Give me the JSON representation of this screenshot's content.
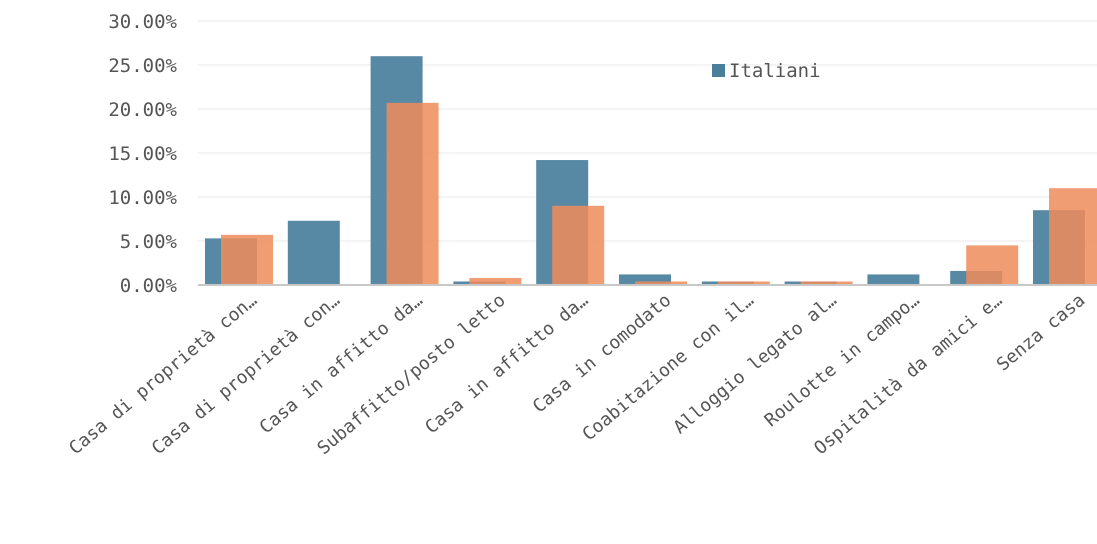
{
  "chart_data": {
    "type": "bar",
    "categories": [
      "Casa di proprietà con…",
      "Casa di proprietà con…",
      "Casa in affitto da…",
      "Subaffitto/posto letto",
      "Casa in affitto da…",
      "Casa in comodato",
      "Coabitazione con il…",
      "Alloggio legato al…",
      "Roulotte in campo…",
      "Ospitalità da amici e…",
      "Senza casa"
    ],
    "series": [
      {
        "name": "Italiani",
        "color": "#4a7f9c",
        "values": [
          5.3,
          7.3,
          26.0,
          0.4,
          14.2,
          1.2,
          0.4,
          0.4,
          1.2,
          1.6,
          8.5
        ]
      },
      {
        "color": "#ef8c5a",
        "values": [
          5.7,
          0.0,
          20.7,
          0.8,
          9.0,
          0.4,
          0.4,
          0.4,
          0.0,
          4.5,
          11.0
        ]
      }
    ],
    "y_ticks": [
      "0.00%",
      "5.00%",
      "10.00%",
      "15.00%",
      "20.00%",
      "25.00%",
      "30.00%"
    ],
    "ylim": [
      0,
      30
    ],
    "grid": true,
    "legend_position": "top-right",
    "overlapping_bars": true
  }
}
